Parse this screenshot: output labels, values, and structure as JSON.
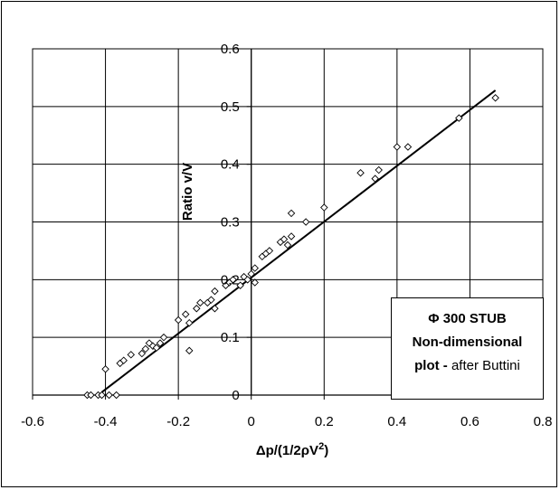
{
  "chart_data": {
    "type": "scatter",
    "xlabel_parts": {
      "pre": "Δp/(1/2ρV",
      "sup": "2",
      "post": ")"
    },
    "ylabel": "Ratio v/V",
    "xlim": [
      -0.6,
      0.8
    ],
    "ylim": [
      0,
      0.6
    ],
    "x_ticks": [
      "-0.6",
      "-0.4",
      "-0.2",
      "0",
      "0.2",
      "0.4",
      "0.6",
      "0.8"
    ],
    "y_ticks": [
      "0",
      "0.1",
      "0.2",
      "0.3",
      "0.4",
      "0.5",
      "0.6"
    ],
    "grid": true,
    "fit_line": {
      "x": [
        -0.41,
        0.67
      ],
      "y": [
        0.005,
        0.528
      ]
    },
    "points": [
      [
        -0.45,
        0.0
      ],
      [
        -0.44,
        0.0
      ],
      [
        -0.42,
        0.0
      ],
      [
        -0.41,
        0.0
      ],
      [
        -0.4,
        0.045
      ],
      [
        -0.39,
        0.0
      ],
      [
        -0.37,
        0.0
      ],
      [
        -0.36,
        0.055
      ],
      [
        -0.35,
        0.06
      ],
      [
        -0.33,
        0.07
      ],
      [
        -0.3,
        0.072
      ],
      [
        -0.29,
        0.08
      ],
      [
        -0.28,
        0.09
      ],
      [
        -0.27,
        0.085
      ],
      [
        -0.26,
        0.082
      ],
      [
        -0.25,
        0.09
      ],
      [
        -0.24,
        0.1
      ],
      [
        -0.2,
        0.13
      ],
      [
        -0.18,
        0.14
      ],
      [
        -0.17,
        0.125
      ],
      [
        -0.17,
        0.077
      ],
      [
        -0.15,
        0.15
      ],
      [
        -0.14,
        0.16
      ],
      [
        -0.12,
        0.16
      ],
      [
        -0.11,
        0.165
      ],
      [
        -0.1,
        0.15
      ],
      [
        -0.1,
        0.18
      ],
      [
        -0.07,
        0.19
      ],
      [
        -0.06,
        0.195
      ],
      [
        -0.05,
        0.2
      ],
      [
        -0.03,
        0.19
      ],
      [
        -0.02,
        0.205
      ],
      [
        -0.01,
        0.2
      ],
      [
        0.0,
        0.21
      ],
      [
        0.01,
        0.22
      ],
      [
        0.01,
        0.195
      ],
      [
        0.03,
        0.24
      ],
      [
        0.04,
        0.245
      ],
      [
        0.05,
        0.25
      ],
      [
        0.08,
        0.265
      ],
      [
        0.09,
        0.27
      ],
      [
        0.1,
        0.26
      ],
      [
        0.11,
        0.275
      ],
      [
        0.11,
        0.315
      ],
      [
        0.15,
        0.3
      ],
      [
        0.2,
        0.325
      ],
      [
        0.3,
        0.385
      ],
      [
        0.34,
        0.375
      ],
      [
        0.35,
        0.39
      ],
      [
        0.4,
        0.43
      ],
      [
        0.43,
        0.43
      ],
      [
        0.57,
        0.48
      ],
      [
        0.67,
        0.515
      ]
    ],
    "legend_lines": [
      {
        "text": "Φ 300 STUB",
        "bold": true
      },
      {
        "text": "Non-dimensional",
        "bold": true
      },
      {
        "bold_text": "plot - ",
        "normal_text": "after Buttini"
      }
    ]
  }
}
